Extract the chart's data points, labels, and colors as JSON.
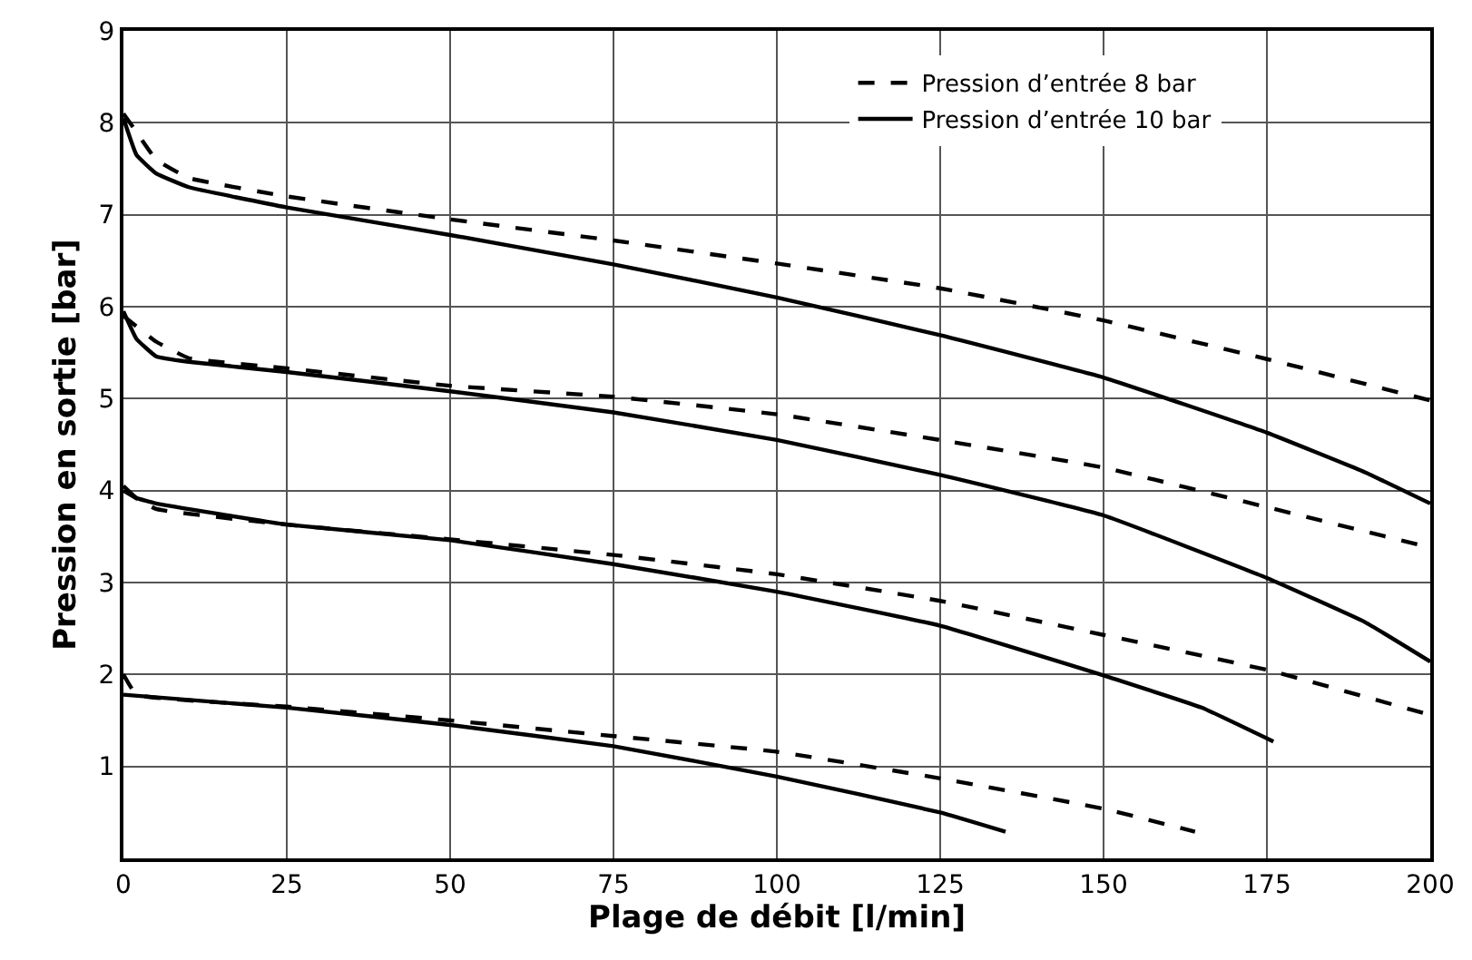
{
  "chart_data": {
    "type": "line",
    "xlabel": "Plage de débit [l/min]",
    "ylabel": "Pression en sortie [bar]",
    "xlim": [
      0,
      200
    ],
    "ylim": [
      0,
      9
    ],
    "xticks": [
      0,
      25,
      50,
      75,
      100,
      125,
      150,
      175,
      200
    ],
    "yticks": [
      1,
      2,
      3,
      4,
      5,
      6,
      7,
      8,
      9
    ],
    "grid": true,
    "legend": "top right",
    "marker": "none",
    "series": [
      {
        "name": "Pression d’entrée 8 bar",
        "color": "#000000",
        "line_style": "dashed",
        "x": [
          0,
          2,
          5,
          10,
          25,
          50,
          75,
          100,
          125,
          150,
          175,
          200
        ],
        "values": [
          8.1,
          7.9,
          7.6,
          7.4,
          7.2,
          6.95,
          6.72,
          6.47,
          6.2,
          5.85,
          5.43,
          4.98
        ]
      },
      {
        "name": "Pression d’entrée 10 bar",
        "color": "#000000",
        "line_style": "solid",
        "x": [
          0,
          2,
          5,
          10,
          25,
          50,
          75,
          100,
          125,
          150,
          175,
          190,
          200
        ],
        "values": [
          8.05,
          7.65,
          7.45,
          7.3,
          7.08,
          6.78,
          6.46,
          6.1,
          5.69,
          5.23,
          4.63,
          4.2,
          3.86
        ]
      },
      {
        "color": "#000000",
        "line_style": "dashed",
        "x": [
          0,
          5,
          10,
          25,
          50,
          75,
          100,
          125,
          150,
          175,
          200
        ],
        "values": [
          5.9,
          5.62,
          5.44,
          5.33,
          5.14,
          5.02,
          4.83,
          4.55,
          4.25,
          3.82,
          3.38
        ]
      },
      {
        "color": "#000000",
        "line_style": "solid",
        "x": [
          0,
          2,
          5,
          10,
          25,
          50,
          75,
          100,
          125,
          150,
          175,
          190,
          200
        ],
        "values": [
          5.95,
          5.65,
          5.46,
          5.4,
          5.29,
          5.08,
          4.85,
          4.55,
          4.17,
          3.73,
          3.05,
          2.57,
          2.14
        ]
      },
      {
        "color": "#000000",
        "line_style": "dashed",
        "x": [
          0,
          5,
          25,
          50,
          75,
          100,
          125,
          150,
          175,
          200
        ],
        "values": [
          4.0,
          3.8,
          3.63,
          3.47,
          3.3,
          3.09,
          2.8,
          2.43,
          2.05,
          1.56
        ]
      },
      {
        "color": "#000000",
        "line_style": "solid",
        "x": [
          0,
          2,
          5,
          25,
          50,
          75,
          100,
          125,
          150,
          165,
          176
        ],
        "values": [
          4.05,
          3.92,
          3.86,
          3.63,
          3.46,
          3.2,
          2.9,
          2.53,
          1.99,
          1.64,
          1.27
        ]
      },
      {
        "color": "#000000",
        "line_style": "dashed",
        "x": [
          0,
          2,
          25,
          50,
          75,
          100,
          125,
          150,
          164
        ],
        "values": [
          2.0,
          1.78,
          1.65,
          1.5,
          1.33,
          1.16,
          0.87,
          0.54,
          0.29
        ]
      },
      {
        "color": "#000000",
        "line_style": "solid",
        "x": [
          0,
          25,
          50,
          75,
          100,
          125,
          135
        ],
        "values": [
          1.78,
          1.64,
          1.45,
          1.22,
          0.89,
          0.5,
          0.29
        ]
      }
    ]
  }
}
